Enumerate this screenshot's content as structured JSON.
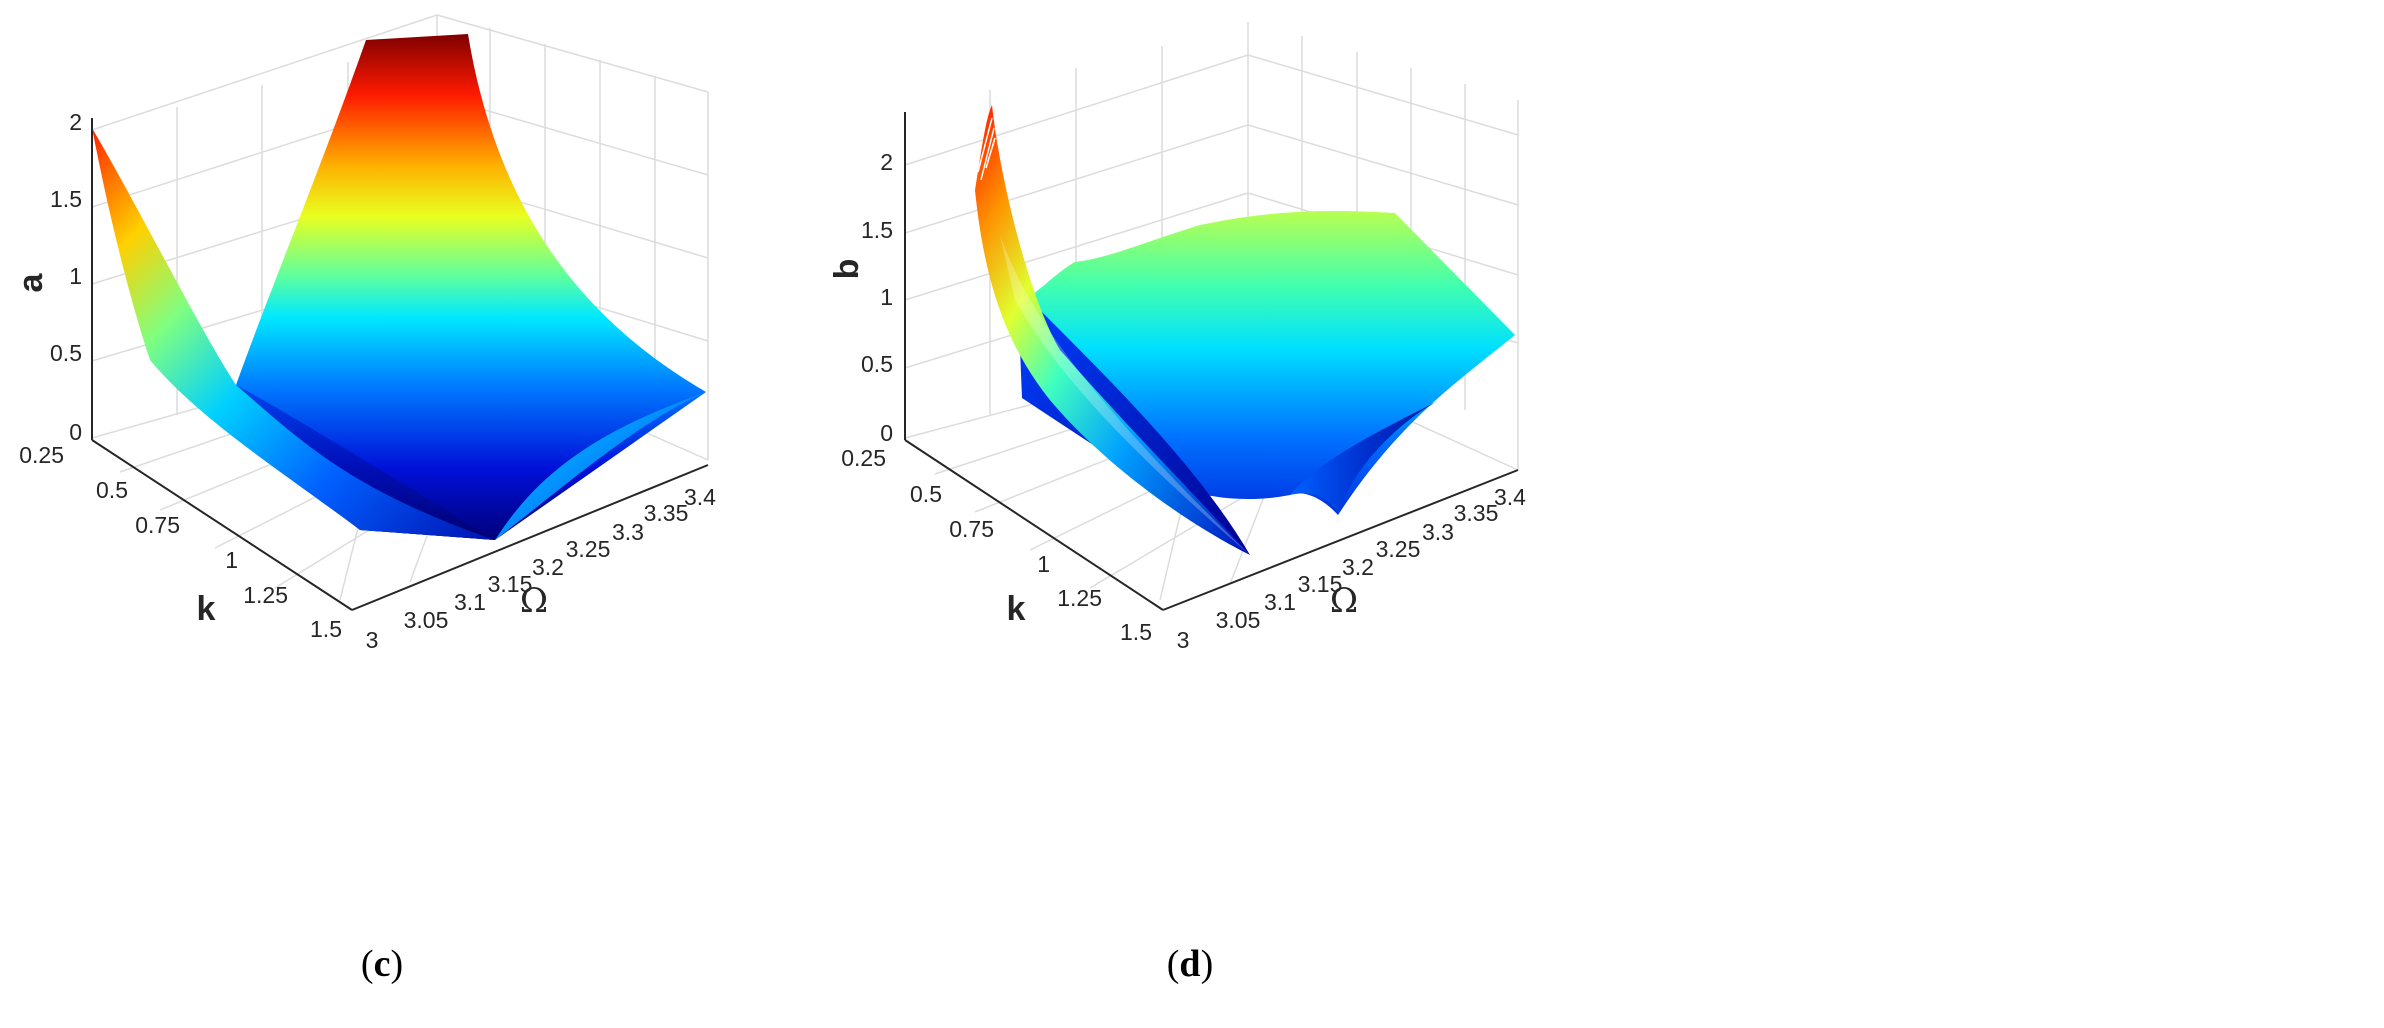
{
  "chart_data": [
    {
      "panel": "c",
      "type": "surface3d",
      "caption_letter": "c",
      "zlabel": "a",
      "xlabel": "Ω",
      "ylabel": "k",
      "z_ticks": [
        "0",
        "0.5",
        "1",
        "1.5",
        "2"
      ],
      "k_ticks": [
        "0.25",
        "0.5",
        "0.75",
        "1",
        "1.25",
        "1.5"
      ],
      "omega_ticks": [
        "3",
        "3.05",
        "3.1",
        "3.15",
        "3.2",
        "3.25",
        "3.3",
        "3.35",
        "3.4"
      ],
      "zlim": [
        0,
        2
      ],
      "klim": [
        0.25,
        1.5
      ],
      "omegalim": [
        3,
        3.4
      ],
      "colormap": "jet",
      "grid": true
    },
    {
      "panel": "d",
      "type": "surface3d",
      "caption_letter": "d",
      "zlabel": "b",
      "xlabel": "Ω",
      "ylabel": "k",
      "z_ticks": [
        "0",
        "0.5",
        "1",
        "1.5",
        "2"
      ],
      "k_ticks": [
        "0.25",
        "0.5",
        "0.75",
        "1",
        "1.25",
        "1.5"
      ],
      "omega_ticks": [
        "3",
        "3.05",
        "3.1",
        "3.15",
        "3.2",
        "3.25",
        "3.3",
        "3.35",
        "3.4"
      ],
      "zlim": [
        0,
        2.3
      ],
      "klim": [
        0.25,
        1.5
      ],
      "omegalim": [
        3,
        3.4
      ],
      "colormap": "jet",
      "grid": true
    }
  ]
}
